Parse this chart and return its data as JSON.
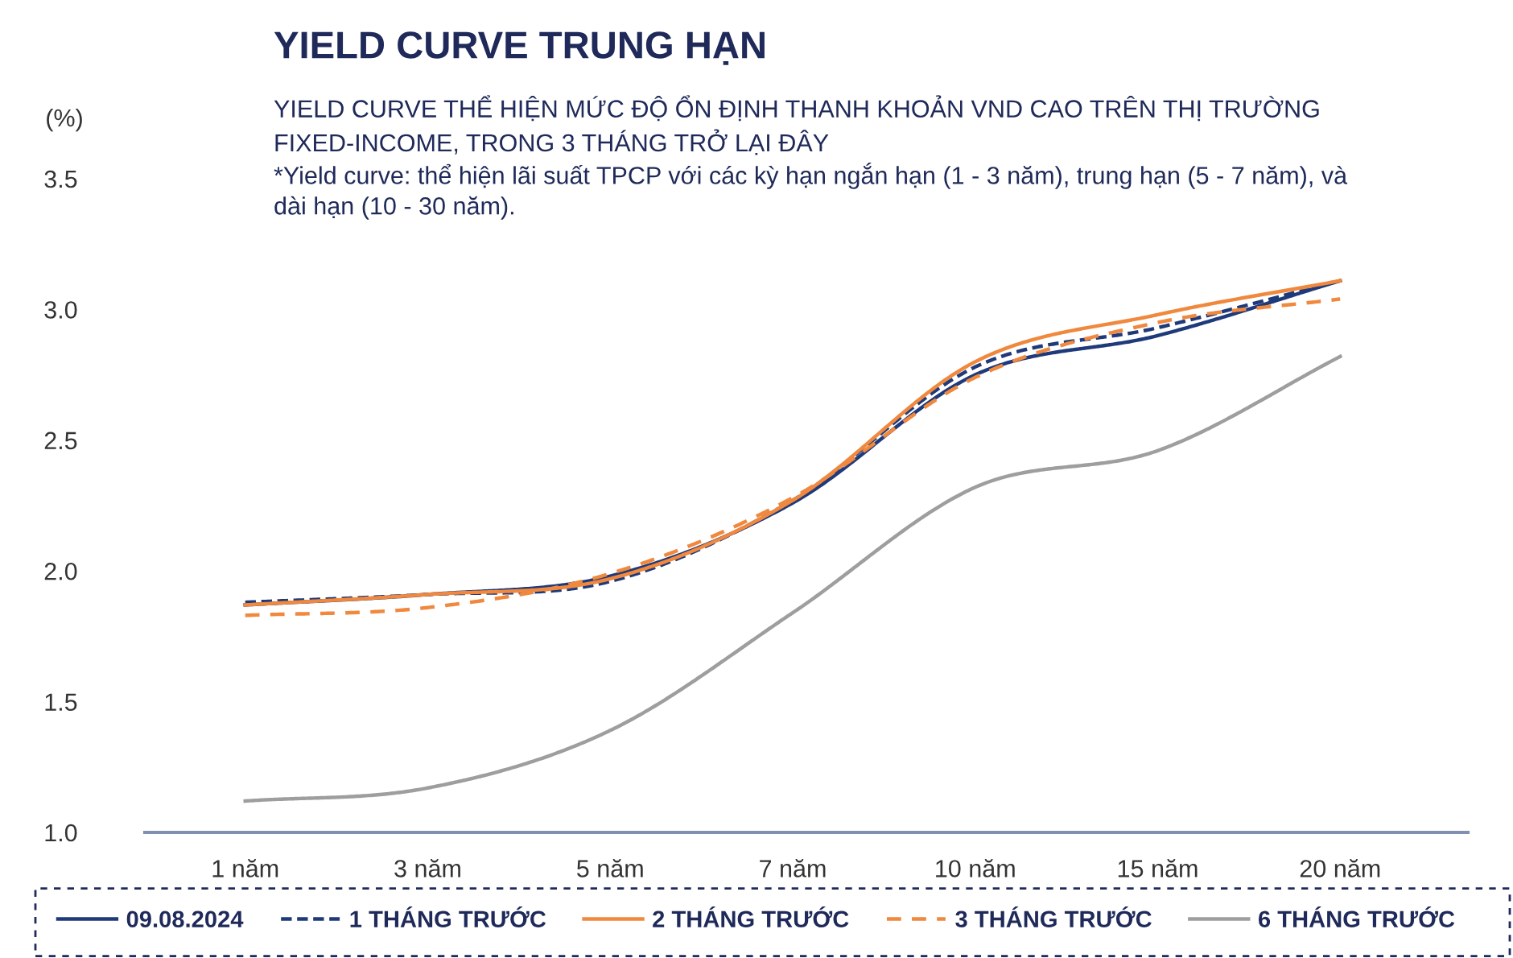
{
  "chart_data": {
    "type": "line",
    "title": "YIELD CURVE TRUNG HẠN",
    "subtitle": "YIELD CURVE THỂ HIỆN MỨC ĐỘ ỔN ĐỊNH THANH KHOẢN VND CAO TRÊN THỊ TRƯỜNG\nFIXED-INCOME, TRONG 3 THÁNG TRỞ LẠI ĐÂY",
    "annotations": [
      "*Yield curve: thể hiện lãi suất TPCP với các kỳ hạn ngắn hạn (1 - 3 năm), trung hạn (5 - 7 năm), và\ndài hạn (10 - 30 năm)."
    ],
    "ylabel": "(%)",
    "categories": [
      "1 năm",
      "3 năm",
      "5 năm",
      "7 năm",
      "10 năm",
      "15 năm",
      "20 năm"
    ],
    "ylim": [
      1.0,
      3.5
    ],
    "yticks": [
      {
        "value": 1.0,
        "label": "1.0"
      },
      {
        "value": 1.5,
        "label": "1.5"
      },
      {
        "value": 2.0,
        "label": "2.0"
      },
      {
        "value": 2.5,
        "label": "2.5"
      },
      {
        "value": 3.0,
        "label": "3.0"
      },
      {
        "value": 3.5,
        "label": "3.5"
      }
    ],
    "grid": false,
    "legend": "bottom",
    "marker": "none",
    "series": [
      {
        "name": "09.08.2024",
        "color": "#1f3a7a",
        "line_style": "solid",
        "values": [
          1.87,
          1.91,
          1.98,
          2.26,
          2.75,
          2.9,
          3.11
        ]
      },
      {
        "name": "1 THÁNG TRƯỚC",
        "color": "#1f3a7a",
        "line_style": "dotted",
        "values": [
          1.88,
          1.91,
          1.96,
          2.27,
          2.78,
          2.93,
          3.11
        ]
      },
      {
        "name": "2 THÁNG TRƯỚC",
        "color": "#f0883e",
        "line_style": "solid",
        "values": [
          1.87,
          1.91,
          1.97,
          2.27,
          2.8,
          2.98,
          3.11
        ]
      },
      {
        "name": "3 THÁNG TRƯỚC",
        "color": "#f0883e",
        "line_style": "dashed",
        "values": [
          1.83,
          1.86,
          1.99,
          2.28,
          2.74,
          2.95,
          3.04
        ]
      },
      {
        "name": "6 THÁNG TRƯỚC",
        "color": "#9e9e9e",
        "line_style": "solid",
        "values": [
          1.12,
          1.17,
          1.39,
          1.84,
          2.32,
          2.46,
          2.82
        ]
      }
    ]
  }
}
